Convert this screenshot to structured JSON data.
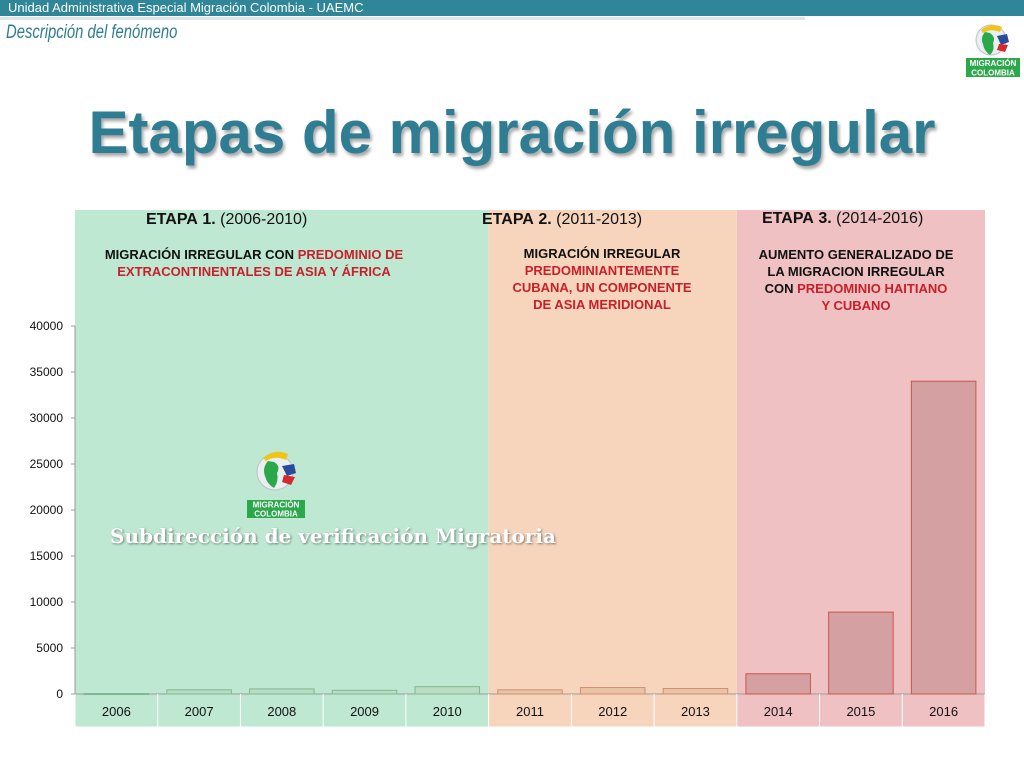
{
  "header": {
    "bar_text": "Unidad Administrativa Especial Migración Colombia - UAEMC",
    "subtitle": "Descripción del fenómeno"
  },
  "slide": {
    "title": "Etapas de migración irregular"
  },
  "logo": {
    "text_1": "MIGRACIÓN",
    "text_2": "COLOMBIA"
  },
  "watermark": {
    "text": "Subdirección de verificación Migratoria",
    "logo_text_1": "MIGRACIÓN",
    "logo_text_2": "COLOMBIA"
  },
  "stages": [
    {
      "label": "ETAPA",
      "number": "1.",
      "period": "(2006-2010)",
      "desc_black_1": "MIGRACIÓN IRREGULAR CON ",
      "desc_red_1": "PREDOMINIO DE",
      "desc_red_2": "EXTRACONTINENTALES DE ASIA Y ÁFRICA",
      "color": "#bfe8d2"
    },
    {
      "label": "ETAPA",
      "number": "2.",
      "period": "(2011-2013)",
      "desc_black_1": "MIGRACIÓN IRREGULAR",
      "desc_red_1": "PREDOMINIANTEMENTE",
      "desc_red_2": "CUBANA, UN COMPONENTE",
      "desc_red_3": "DE ASIA MERIDIONAL",
      "color": "#f7d5bd"
    },
    {
      "label": "ETAPA",
      "number": "3.",
      "period": "(2014-2016)",
      "desc_black_1": "AUMENTO GENERALIZADO DE",
      "desc_black_2": "LA MIGRACION IRREGULAR",
      "desc_black_3": "CON ",
      "desc_red_1": "PREDOMINIO  HAITIANO",
      "desc_red_2": "Y CUBANO",
      "color": "#efc1c2"
    }
  ],
  "chart_data": {
    "type": "bar",
    "categories": [
      "2006",
      "2007",
      "2008",
      "2009",
      "2010",
      "2011",
      "2012",
      "2013",
      "2014",
      "2015",
      "2016"
    ],
    "values": [
      50,
      450,
      550,
      400,
      800,
      450,
      700,
      600,
      2200,
      8900,
      34000
    ],
    "ylim": [
      0,
      40000
    ],
    "yticks": [
      0,
      5000,
      10000,
      15000,
      20000,
      25000,
      30000,
      35000,
      40000
    ],
    "ytick_labels": [
      "0",
      "5000",
      "10000",
      "15000",
      "20000",
      "25000",
      "30000",
      "35000",
      "40000"
    ],
    "title": "",
    "xlabel": "",
    "ylabel": "",
    "grid": false,
    "stage_ranges": [
      [
        "2006",
        "2010"
      ],
      [
        "2011",
        "2013"
      ],
      [
        "2014",
        "2016"
      ]
    ],
    "bar_colors": [
      "#b9dcc3",
      "#e8c3a6",
      "#d4a0a2"
    ],
    "bar_edge_colors": [
      "#7fb793",
      "#cf8f6f",
      "#c9574a"
    ]
  }
}
